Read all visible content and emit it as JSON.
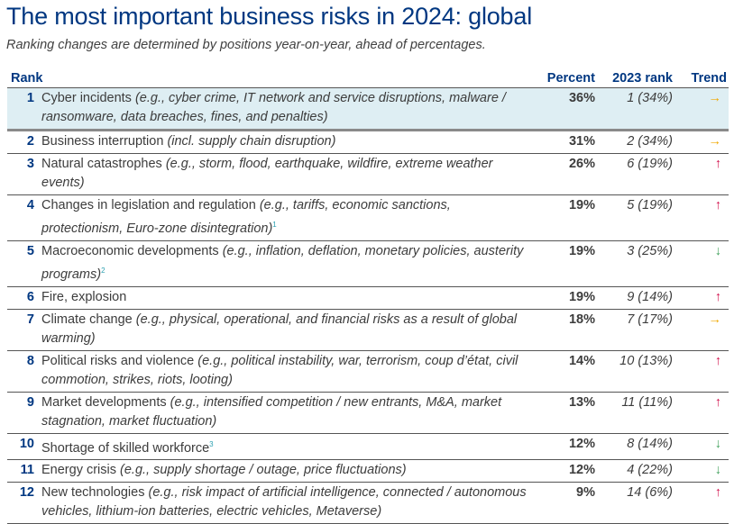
{
  "title": "The most important business risks in 2024: global",
  "subtitle": "Ranking changes are determined by positions year-on-year, ahead of percentages.",
  "headers": {
    "rank": "Rank",
    "percent": "Percent",
    "prev_rank": "2023 rank",
    "trend": "Trend"
  },
  "colors": {
    "title": "#003781",
    "highlight": "#deeef3",
    "same": "#f0a800",
    "up": "#d3134f",
    "down": "#4aa564"
  },
  "rows": [
    {
      "rank": "1",
      "name": "Cyber incidents ",
      "detail": "(e.g., cyber crime, IT network and service disruptions, malware / ransomware, data breaches, fines, and penalties)",
      "note": "",
      "percent": "36%",
      "prev": "1 (34%)",
      "trend": "same",
      "arrow": "→"
    },
    {
      "rank": "2",
      "name": "Business interruption ",
      "detail": "(incl. supply chain disruption)",
      "note": "",
      "percent": "31%",
      "prev": "2 (34%)",
      "trend": "same",
      "arrow": "→"
    },
    {
      "rank": "3",
      "name": "Natural catastrophes ",
      "detail": "(e.g., storm, flood, earthquake, wildfire, extreme weather events)",
      "note": "",
      "percent": "26%",
      "prev": "6 (19%)",
      "trend": "up",
      "arrow": "↑"
    },
    {
      "rank": "4",
      "name": "Changes in legislation and regulation ",
      "detail": "(e.g., tariffs, economic sanctions, protectionism, Euro-zone disintegration)",
      "note": "1",
      "percent": "19%",
      "prev": "5 (19%)",
      "trend": "up",
      "arrow": "↑"
    },
    {
      "rank": "5",
      "name": "Macroeconomic developments ",
      "detail": "(e.g., inflation, deflation, monetary policies, austerity programs)",
      "note": "2",
      "percent": "19%",
      "prev": "3 (25%)",
      "trend": "down",
      "arrow": "↓"
    },
    {
      "rank": "6",
      "name": "Fire, explosion",
      "detail": "",
      "note": "",
      "percent": "19%",
      "prev": "9 (14%)",
      "trend": "up",
      "arrow": "↑"
    },
    {
      "rank": "7",
      "name": "Climate change ",
      "detail": "(e.g., physical, operational, and financial risks as a result of global warming)",
      "note": "",
      "percent": "18%",
      "prev": "7 (17%)",
      "trend": "same",
      "arrow": "→"
    },
    {
      "rank": "8",
      "name": "Political risks and violence ",
      "detail": "(e.g., political instability, war, terrorism, coup d’état, civil commotion, strikes, riots, looting)",
      "note": "",
      "percent": "14%",
      "prev": "10 (13%)",
      "trend": "up",
      "arrow": "↑"
    },
    {
      "rank": "9",
      "name": "Market developments ",
      "detail": "(e.g., intensified competition / new entrants, M&A, market stagnation, market fluctuation)",
      "note": "",
      "percent": "13%",
      "prev": "11 (11%)",
      "trend": "up",
      "arrow": "↑"
    },
    {
      "rank": "10",
      "name": "Shortage of skilled workforce",
      "detail": "",
      "note": "3",
      "percent": "12%",
      "prev": "8 (14%)",
      "trend": "down",
      "arrow": "↓"
    },
    {
      "rank": "11",
      "name": "Energy crisis ",
      "detail": "(e.g., supply shortage / outage, price fluctuations)",
      "note": "",
      "percent": "12%",
      "prev": "4 (22%)",
      "trend": "down",
      "arrow": "↓"
    },
    {
      "rank": "12",
      "name": "New technologies ",
      "detail": "(e.g., risk impact of artificial intelligence, connected / autonomous vehicles, lithium-ion batteries, electric vehicles, Metaverse)",
      "note": "",
      "percent": "9%",
      "prev": "14 (6%)",
      "trend": "up",
      "arrow": "↑"
    }
  ]
}
